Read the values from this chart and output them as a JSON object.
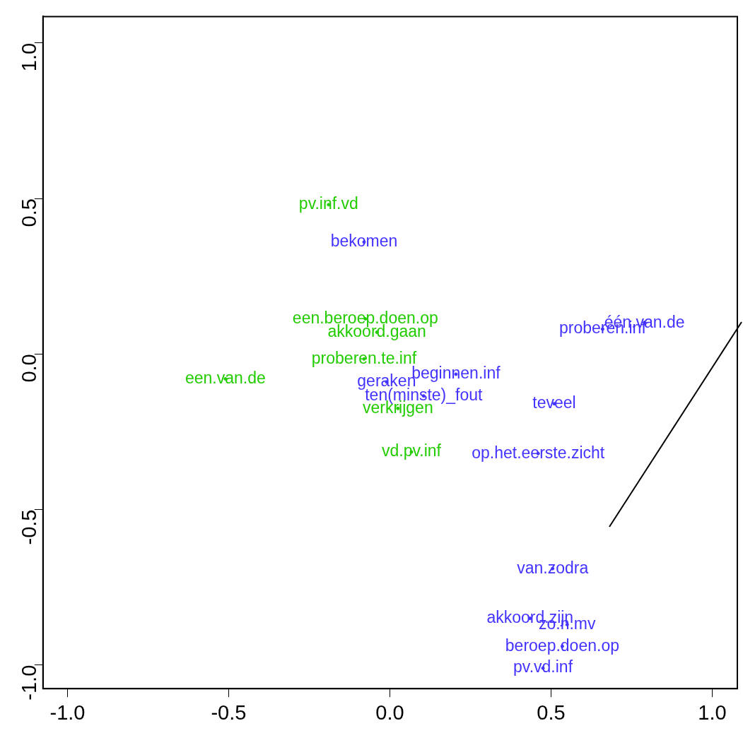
{
  "chart_data": {
    "type": "scatter",
    "marker": "circle",
    "grid": false,
    "xlim": [
      -1.076,
      1.078
    ],
    "ylim": [
      -1.076,
      1.085
    ],
    "xticks": [
      {
        "value": -1,
        "label": "-1.0"
      },
      -0.5,
      {
        "value": 0,
        "label": "0.0"
      },
      0.5,
      {
        "value": 1,
        "label": "1.0"
      }
    ],
    "yticks": [
      {
        "value": -1,
        "label": "-1.0"
      },
      -0.5,
      {
        "value": 0,
        "label": "0.0"
      },
      0.5,
      {
        "value": 1,
        "label": "1.0"
      }
    ],
    "series": [
      {
        "color": "#22cc00",
        "x": [
          -0.19,
          -0.076,
          -0.04,
          -0.08,
          -0.51,
          0.025,
          0.067
        ],
        "values": [
          0.48,
          0.113,
          0.07,
          -0.016,
          -0.08,
          -0.175,
          -0.315
        ],
        "value_labels": [
          "pv.inf.vd",
          "een.beroep.doen.op",
          "akkoord.gaan",
          "proberen.te.inf",
          "een.van.de",
          "verkrijgen",
          "vd.pv.inf"
        ]
      },
      {
        "color": "#4433ff",
        "x": [
          -0.08,
          0.66,
          0.79,
          0.205,
          -0.01,
          0.105,
          0.51,
          0.46,
          0.505,
          0.435,
          0.55,
          0.535,
          0.475
        ],
        "values": [
          0.36,
          0.08,
          0.1,
          -0.065,
          -0.09,
          -0.135,
          -0.16,
          -0.32,
          -0.69,
          -0.85,
          -0.87,
          -0.94,
          -1.01
        ],
        "value_labels": [
          "bekomen",
          "proberen.inf",
          "één.van.de",
          "beginnen.inf",
          "geraken",
          "ten(minste)_fout",
          "teveel",
          "op.het.eerste.zicht",
          "van.zodra",
          "akkoord.zijn",
          "zo.n.mv",
          "beroep.doen.op",
          "pv.vd.inf"
        ]
      }
    ]
  }
}
